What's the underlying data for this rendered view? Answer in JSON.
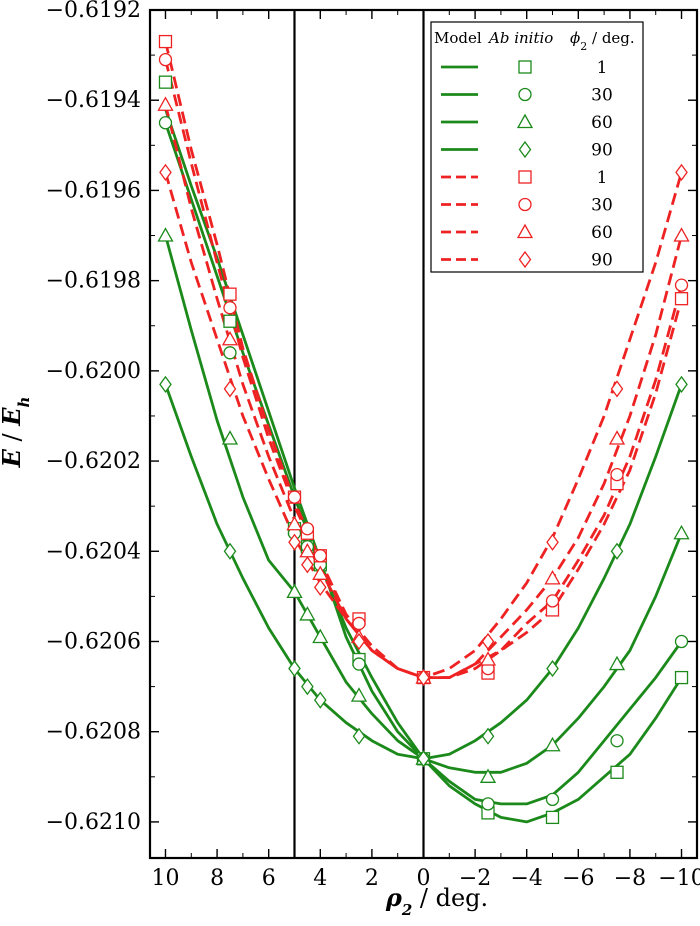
{
  "chart_data": {
    "type": "line",
    "xlabel_symbol": "ρ",
    "xlabel_sub": "2",
    "xlabel_unit": " / deg.",
    "ylabel_symbol": "E",
    "ylabel_mid": " / ",
    "ylabel_e": "E",
    "ylabel_sub": "h",
    "xlim": [
      10.6,
      -10.6
    ],
    "ylim": [
      -0.62108,
      -0.6192
    ],
    "x_ticks": [
      10,
      8,
      6,
      4,
      2,
      0,
      -2,
      -4,
      -6,
      -8,
      -10
    ],
    "x_tick_labels": [
      "10",
      "8",
      "6",
      "4",
      "2",
      "0",
      "−2",
      "−4",
      "−6",
      "−8",
      "−10"
    ],
    "y_ticks": [
      -0.6192,
      -0.6194,
      -0.6196,
      -0.6198,
      -0.62,
      -0.6202,
      -0.6204,
      -0.6206,
      -0.6208,
      -0.621
    ],
    "y_tick_labels": [
      "−0.6192",
      "−0.6194",
      "−0.6196",
      "−0.6198",
      "−0.6200",
      "−0.6202",
      "−0.6204",
      "−0.6206",
      "−0.6208",
      "−0.6210"
    ],
    "vlines": [
      5,
      0
    ],
    "legend": {
      "position": "top-right",
      "header_model": "Model",
      "header_abinitio": "Ab initio",
      "header_phi_symbol": "ϕ",
      "header_phi_sub": "2",
      "header_phi_unit": " / deg."
    },
    "colors": {
      "green": "#1b8a1b",
      "red": "#ee2222"
    },
    "series": [
      {
        "name": "1",
        "group": "green",
        "marker": "square",
        "line": "solid",
        "x": [
          10,
          7.5,
          5,
          4.5,
          4,
          2.5,
          0,
          -2.5,
          -5,
          -7.5,
          -10
        ],
        "y": [
          -0.61936,
          -0.61989,
          -0.62035,
          -0.62039,
          -0.62043,
          -0.62064,
          -0.62086,
          -0.62098,
          -0.62099,
          -0.62089,
          -0.62068
        ],
        "fit_x": [
          10,
          9,
          8,
          7,
          6,
          5,
          4,
          3,
          2,
          1,
          0,
          -1,
          -2,
          -3,
          -4,
          -5,
          -6,
          -7,
          -8,
          -9,
          -10
        ],
        "fit_y": [
          -0.61942,
          -0.61959,
          -0.61975,
          -0.61992,
          -0.62009,
          -0.62026,
          -0.62042,
          -0.62059,
          -0.62071,
          -0.6208,
          -0.62086,
          -0.62092,
          -0.62096,
          -0.62099,
          -0.621,
          -0.62098,
          -0.62095,
          -0.6209,
          -0.62085,
          -0.62077,
          -0.62068
        ]
      },
      {
        "name": "30",
        "group": "green",
        "marker": "circle",
        "line": "solid",
        "x": [
          10,
          7.5,
          5,
          4.5,
          4,
          2.5,
          0,
          -2.5,
          -5,
          -7.5,
          -10
        ],
        "y": [
          -0.61945,
          -0.61996,
          -0.62036,
          -0.62039,
          -0.62043,
          -0.62065,
          -0.62086,
          -0.62096,
          -0.62095,
          -0.62082,
          -0.6206
        ],
        "fit_x": [
          10,
          9,
          8,
          7,
          6,
          5,
          4,
          3,
          2,
          1,
          0,
          -1,
          -2,
          -3,
          -4,
          -5,
          -6,
          -7,
          -8,
          -9,
          -10
        ],
        "fit_y": [
          -0.61945,
          -0.61962,
          -0.61979,
          -0.61996,
          -0.62012,
          -0.62028,
          -0.62043,
          -0.62057,
          -0.62068,
          -0.62078,
          -0.62086,
          -0.62091,
          -0.62095,
          -0.62096,
          -0.62096,
          -0.62094,
          -0.62089,
          -0.62082,
          -0.62075,
          -0.62068,
          -0.6206
        ]
      },
      {
        "name": "60",
        "group": "green",
        "marker": "triangle",
        "line": "solid",
        "x": [
          10,
          7.5,
          5,
          4.5,
          4,
          2.5,
          0,
          -2.5,
          -5,
          -7.5,
          -10
        ],
        "y": [
          -0.6197,
          -0.62015,
          -0.62049,
          -0.62054,
          -0.62059,
          -0.62072,
          -0.62086,
          -0.6209,
          -0.62083,
          -0.62065,
          -0.62036
        ],
        "fit_x": [
          10,
          9,
          8,
          7,
          6,
          5,
          4,
          3,
          2,
          1,
          0,
          -1,
          -2,
          -3,
          -4,
          -5,
          -6,
          -7,
          -8,
          -9,
          -10
        ],
        "fit_y": [
          -0.6197,
          -0.61991,
          -0.62011,
          -0.62028,
          -0.62042,
          -0.62049,
          -0.62059,
          -0.62069,
          -0.62076,
          -0.62082,
          -0.62086,
          -0.62088,
          -0.62089,
          -0.62089,
          -0.62087,
          -0.62083,
          -0.62077,
          -0.6207,
          -0.62062,
          -0.6205,
          -0.62036
        ]
      },
      {
        "name": "90",
        "group": "green",
        "marker": "diamond",
        "line": "solid",
        "x": [
          10,
          7.5,
          5,
          4.5,
          4,
          2.5,
          0,
          -2.5,
          -5,
          -7.5,
          -10
        ],
        "y": [
          -0.62003,
          -0.6204,
          -0.62066,
          -0.6207,
          -0.62073,
          -0.62081,
          -0.62086,
          -0.62081,
          -0.62066,
          -0.6204,
          -0.62003
        ],
        "fit_x": [
          10,
          9,
          8,
          7,
          6,
          5,
          4,
          3,
          2,
          1,
          0,
          -1,
          -2,
          -3,
          -4,
          -5,
          -6,
          -7,
          -8,
          -9,
          -10
        ],
        "fit_y": [
          -0.62003,
          -0.62019,
          -0.62034,
          -0.62046,
          -0.62057,
          -0.62066,
          -0.62073,
          -0.62078,
          -0.62082,
          -0.62085,
          -0.62086,
          -0.62085,
          -0.62082,
          -0.62078,
          -0.62073,
          -0.62066,
          -0.62057,
          -0.62046,
          -0.62034,
          -0.62019,
          -0.62003
        ]
      },
      {
        "name": "1",
        "group": "red",
        "marker": "square",
        "line": "dashed",
        "x": [
          10,
          7.5,
          5,
          4.5,
          4,
          2.5,
          0,
          -2.5,
          -5,
          -7.5,
          -10
        ],
        "y": [
          -0.61927,
          -0.61983,
          -0.62028,
          -0.62036,
          -0.62041,
          -0.62055,
          -0.62068,
          -0.62067,
          -0.62053,
          -0.62025,
          -0.61984
        ],
        "fit_x": [
          10,
          9,
          8,
          7,
          6,
          5,
          4,
          3,
          2,
          1,
          0,
          -1,
          -2,
          -3,
          -4,
          -5,
          -6,
          -7,
          -8,
          -9,
          -10
        ],
        "fit_y": [
          -0.61927,
          -0.61951,
          -0.61972,
          -0.61995,
          -0.62013,
          -0.62029,
          -0.62042,
          -0.62054,
          -0.62061,
          -0.62066,
          -0.62068,
          -0.62068,
          -0.62066,
          -0.62062,
          -0.62058,
          -0.62053,
          -0.62044,
          -0.62034,
          -0.62022,
          -0.62005,
          -0.61984
        ]
      },
      {
        "name": "30",
        "group": "red",
        "marker": "circle",
        "line": "dashed",
        "x": [
          10,
          7.5,
          5,
          4.5,
          4,
          2.5,
          0,
          -2.5,
          -5,
          -7.5,
          -10
        ],
        "y": [
          -0.61931,
          -0.61986,
          -0.62028,
          -0.62035,
          -0.62041,
          -0.62056,
          -0.62068,
          -0.62066,
          -0.62051,
          -0.62023,
          -0.61981
        ],
        "fit_x": [
          10,
          9,
          8,
          7,
          6,
          5,
          4,
          3,
          2,
          1,
          0,
          -1,
          -2,
          -3,
          -4,
          -5,
          -6,
          -7,
          -8,
          -9,
          -10
        ],
        "fit_y": [
          -0.61931,
          -0.61954,
          -0.61976,
          -0.61997,
          -0.62015,
          -0.6203,
          -0.62042,
          -0.62055,
          -0.62062,
          -0.62066,
          -0.62068,
          -0.62068,
          -0.62065,
          -0.62062,
          -0.62056,
          -0.62051,
          -0.62042,
          -0.62032,
          -0.62019,
          -0.62002,
          -0.61981
        ]
      },
      {
        "name": "60",
        "group": "red",
        "marker": "triangle",
        "line": "dashed",
        "x": [
          10,
          7.5,
          5,
          4.5,
          4,
          2.5,
          0,
          -2.5,
          -5,
          -7.5,
          -10
        ],
        "y": [
          -0.61941,
          -0.61993,
          -0.62034,
          -0.6204,
          -0.62045,
          -0.62059,
          -0.62068,
          -0.62064,
          -0.62046,
          -0.62015,
          -0.6197
        ],
        "fit_x": [
          10,
          9,
          8,
          7,
          6,
          5,
          4,
          3,
          2,
          1,
          0,
          -1,
          -2,
          -3,
          -4,
          -5,
          -6,
          -7,
          -8,
          -9,
          -10
        ],
        "fit_y": [
          -0.61941,
          -0.61964,
          -0.61984,
          -0.62003,
          -0.62019,
          -0.62033,
          -0.62044,
          -0.62055,
          -0.62062,
          -0.62066,
          -0.62068,
          -0.62068,
          -0.62065,
          -0.62059,
          -0.62053,
          -0.62046,
          -0.62037,
          -0.62025,
          -0.6201,
          -0.61992,
          -0.6197
        ]
      },
      {
        "name": "90",
        "group": "red",
        "marker": "diamond",
        "line": "dashed",
        "x": [
          10,
          7.5,
          5,
          4.5,
          4,
          2.5,
          0,
          -2.5,
          -5,
          -7.5,
          -10
        ],
        "y": [
          -0.61956,
          -0.62004,
          -0.62038,
          -0.62043,
          -0.62048,
          -0.6206,
          -0.62068,
          -0.6206,
          -0.62038,
          -0.62004,
          -0.61956
        ],
        "fit_x": [
          10,
          9,
          8,
          7,
          6,
          5,
          4,
          3,
          2,
          1,
          0,
          -1,
          -2,
          -3,
          -4,
          -5,
          -6,
          -7,
          -8,
          -9,
          -10
        ],
        "fit_y": [
          -0.61956,
          -0.61976,
          -0.61993,
          -0.6201,
          -0.62024,
          -0.62037,
          -0.62047,
          -0.62055,
          -0.62062,
          -0.62066,
          -0.62068,
          -0.62066,
          -0.62062,
          -0.62055,
          -0.62047,
          -0.62037,
          -0.62024,
          -0.6201,
          -0.61993,
          -0.61976,
          -0.61956
        ]
      }
    ]
  }
}
